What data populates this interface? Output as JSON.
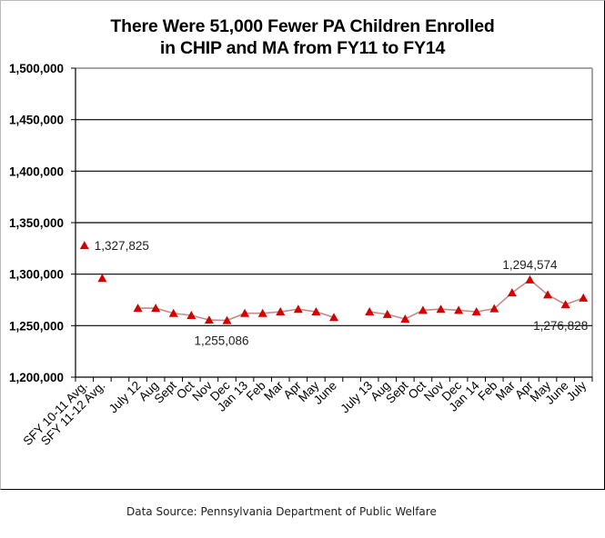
{
  "chart_data": {
    "type": "line",
    "title": "There Were 51,000 Fewer PA Children Enrolled in CHIP and MA from FY11 to FY14",
    "title_lines": [
      "There Were 51,000 Fewer PA Children Enrolled",
      "in CHIP and MA from FY11 to FY14"
    ],
    "xlabel": "",
    "ylabel": "",
    "ylim": [
      1200000,
      1500000
    ],
    "yticks": [
      1200000,
      1250000,
      1300000,
      1350000,
      1400000,
      1450000,
      1500000
    ],
    "ytick_labels": [
      "1,200,000",
      "1,250,000",
      "1,300,000",
      "1,350,000",
      "1,400,000",
      "1,450,000",
      "1,500,000"
    ],
    "grid": true,
    "legend": "none",
    "categories": [
      "SFY 10-11 Avg.",
      "SFY 11-12 Avg.",
      "",
      "July 12",
      "Aug",
      "Sept",
      "Oct",
      "Nov",
      "Dec",
      "Jan 13",
      "Feb",
      "Mar",
      "Apr",
      "May",
      "June",
      "",
      "July 13",
      "Aug",
      "Sept",
      "Oct",
      "Nov",
      "Dec",
      "Jan 14",
      "Feb",
      "Mar",
      "Apr",
      "May",
      "June",
      "July"
    ],
    "series": [
      {
        "name": "Children Enrolled in CHIP and MA",
        "values": [
          1327825,
          1296000,
          null,
          1267000,
          1267000,
          1262000,
          1260000,
          1255500,
          1255086,
          1262000,
          1262000,
          1263500,
          1266000,
          1263500,
          1258000,
          null,
          1263500,
          1261000,
          1256500,
          1265000,
          1266000,
          1265000,
          1263500,
          1266500,
          1282000,
          1294574,
          1280000,
          1270500,
          1276828
        ],
        "segments": [
          [
            0,
            0
          ],
          [
            1,
            1
          ],
          [
            3,
            14
          ],
          [
            16,
            28
          ]
        ]
      }
    ],
    "annotations": [
      {
        "index": 0,
        "text": "1,327,825",
        "position": "right"
      },
      {
        "index": 8,
        "text": "1,255,086",
        "position": "below"
      },
      {
        "index": 25,
        "text": "1,294,574",
        "position": "above"
      },
      {
        "index": 28,
        "text": "1,276,828",
        "position": "below-left"
      }
    ],
    "colors": {
      "marker": "#d40000",
      "line": "#c48a8a",
      "grid": "#000000",
      "plot_border": "#8c8c8c"
    }
  },
  "footer": {
    "source": "Data Source: Pennsylvania Department of Public Welfare"
  }
}
